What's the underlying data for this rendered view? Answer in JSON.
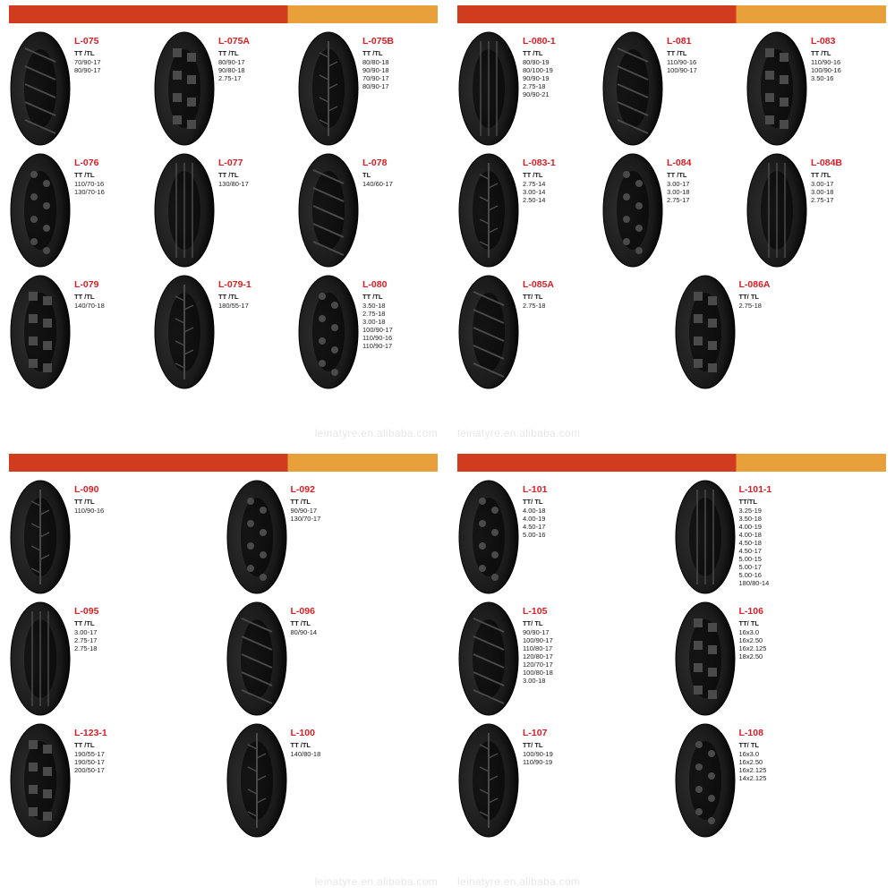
{
  "colors": {
    "accent": "#d81e24",
    "bar_red": "#d13b1e",
    "bar_orange": "#e8a03a",
    "tire_dark": "#1a1a1a",
    "tire_mid": "#2f2f2f",
    "tire_light": "#4a4a4a",
    "text": "#222222"
  },
  "watermark": "leinatyre.en.alibaba.com",
  "quadrants": [
    {
      "rows": [
        [
          {
            "model": "L-075",
            "type": "TT /TL",
            "sizes": [
              "70/90-17",
              "80/90-17"
            ]
          },
          {
            "model": "L-075A",
            "type": "TT /TL",
            "sizes": [
              "80/90-17",
              "90/80-18",
              "2.75-17"
            ]
          },
          {
            "model": "L-075B",
            "type": "TT /TL",
            "sizes": [
              "80/80-18",
              "90/90-18",
              "70/90-17",
              "80/90-17"
            ]
          }
        ],
        [
          {
            "model": "L-076",
            "type": "TT /TL",
            "sizes": [
              "110/70-16",
              "130/70-16"
            ]
          },
          {
            "model": "L-077",
            "type": "TT /TL",
            "sizes": [
              "130/80-17"
            ]
          },
          {
            "model": "L-078",
            "type": "TL",
            "sizes": [
              "140/60-17"
            ]
          }
        ],
        [
          {
            "model": "L-079",
            "type": "TT /TL",
            "sizes": [
              "140/70-18"
            ]
          },
          {
            "model": "L-079-1",
            "type": "TT /TL",
            "sizes": [
              "180/55-17"
            ]
          },
          {
            "model": "L-080",
            "type": "TT /TL",
            "sizes": [
              "3.50-18",
              "2.75-18",
              "3.00-18",
              "100/90-17",
              "110/90-16",
              "110/90-17"
            ]
          }
        ]
      ]
    },
    {
      "rows": [
        [
          {
            "model": "L-080-1",
            "type": "TT /TL",
            "sizes": [
              "80/90-19",
              "80/100-19",
              "90/90-19",
              "2.75-18",
              "90/90-21"
            ]
          },
          {
            "model": "L-081",
            "type": "TT /TL",
            "sizes": [
              "110/90-16",
              "100/90-17"
            ]
          },
          {
            "model": "L-083",
            "type": "TT /TL",
            "sizes": [
              "110/90-16",
              "100/90-16",
              "3.50-16"
            ]
          }
        ],
        [
          {
            "model": "L-083-1",
            "type": "TT /TL",
            "sizes": [
              "2.75-14",
              "3.00-14",
              "2.50-14"
            ]
          },
          {
            "model": "L-084",
            "type": "TT /TL",
            "sizes": [
              "3.00-17",
              "3.00-18",
              "2.75-17"
            ]
          },
          {
            "model": "L-084B",
            "type": "TT /TL",
            "sizes": [
              "3.00-17",
              "3.00-18",
              "2.75-17"
            ]
          }
        ],
        [
          {
            "model": "L-085A",
            "type": "TT/ TL",
            "sizes": [
              "2.75-18"
            ]
          },
          {
            "model": "L-086A",
            "type": "TT/ TL",
            "sizes": [
              "2.75-18"
            ]
          }
        ]
      ]
    },
    {
      "rows": [
        [
          {
            "model": "L-090",
            "type": "TT /TL",
            "sizes": [
              "110/90-16"
            ]
          },
          {
            "model": "L-092",
            "type": "TT /TL",
            "sizes": [
              "90/90-17",
              "130/70-17"
            ]
          }
        ],
        [
          {
            "model": "L-095",
            "type": "TT /TL",
            "sizes": [
              "3.00-17",
              "2.75-17",
              "2.75-18"
            ]
          },
          {
            "model": "L-096",
            "type": "TT /TL",
            "sizes": [
              "80/90-14"
            ]
          }
        ],
        [
          {
            "model": "L-123-1",
            "type": "TT /TL",
            "sizes": [
              "190/55-17",
              "190/50-17",
              "200/50-17"
            ]
          },
          {
            "model": "L-100",
            "type": "TT /TL",
            "sizes": [
              "140/80-18"
            ]
          }
        ]
      ]
    },
    {
      "rows": [
        [
          {
            "model": "L-101",
            "type": "TT/ TL",
            "sizes": [
              "4.00-18",
              "4.00-19",
              "4.50-17",
              "5.00-16"
            ]
          },
          {
            "model": "L-101-1",
            "type": "TT/TL",
            "sizes": [
              "3.25-19",
              "3.50-18",
              "4.00-19",
              "4.00-18",
              "4.50-18",
              "4.50-17",
              "5.00-15",
              "5.00-17",
              "5.00-16",
              "180/80-14"
            ]
          }
        ],
        [
          {
            "model": "L-105",
            "type": "TT/ TL",
            "sizes": [
              "90/90-17",
              "100/90-17",
              "110/80-17",
              "120/80-17",
              "120/70-17",
              "100/80-18",
              "3.00-18"
            ]
          },
          {
            "model": "L-106",
            "type": "TT/ TL",
            "sizes": [
              "16x3.0",
              "16x2.50",
              "16x2.125",
              "18x2.50"
            ]
          }
        ],
        [
          {
            "model": "L-107",
            "type": "TT/ TL",
            "sizes": [
              "100/90-19",
              "110/90-19"
            ]
          },
          {
            "model": "L-108",
            "type": "TT/ TL",
            "sizes": [
              "16x3.0",
              "16x2.50",
              "16x2.125",
              "14x2.125"
            ]
          }
        ]
      ]
    }
  ]
}
